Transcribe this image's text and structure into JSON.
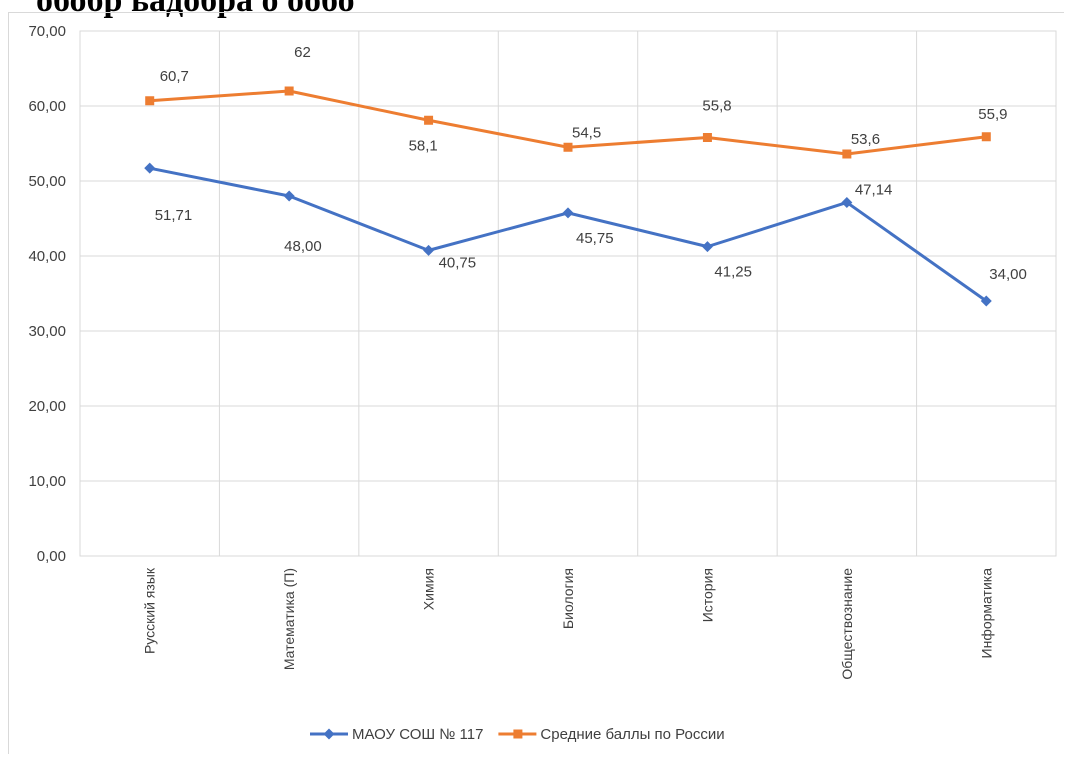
{
  "heading_clipped": "обобр ьадобра о    ообо",
  "chart_data": {
    "type": "line",
    "categories": [
      "Русский язык",
      "Математика (П)",
      "Химия",
      "Биология",
      "История",
      "Обществознание",
      "Информатика"
    ],
    "ylim": [
      0,
      70
    ],
    "y_ticks": [
      "0,00",
      "10,00",
      "20,00",
      "30,00",
      "40,00",
      "50,00",
      "60,00",
      "70,00"
    ],
    "grid": true,
    "legend_position": "bottom",
    "series": [
      {
        "name": "МАОУ СОШ № 117",
        "color": "#4472c4",
        "marker": "diamond",
        "values": [
          51.71,
          48.0,
          40.75,
          45.75,
          41.25,
          47.14,
          34.0
        ],
        "labels": [
          "51,71",
          "48,00",
          "40,75",
          "45,75",
          "41,25",
          "47,14",
          "34,00"
        ]
      },
      {
        "name": "Средние баллы по России",
        "color": "#ed7d31",
        "marker": "square",
        "values": [
          60.7,
          62,
          58.1,
          54.5,
          55.8,
          53.6,
          55.9
        ],
        "labels": [
          "60,7",
          "62",
          "58,1",
          "54,5",
          "55,8",
          "53,6",
          "55,9"
        ]
      }
    ]
  }
}
